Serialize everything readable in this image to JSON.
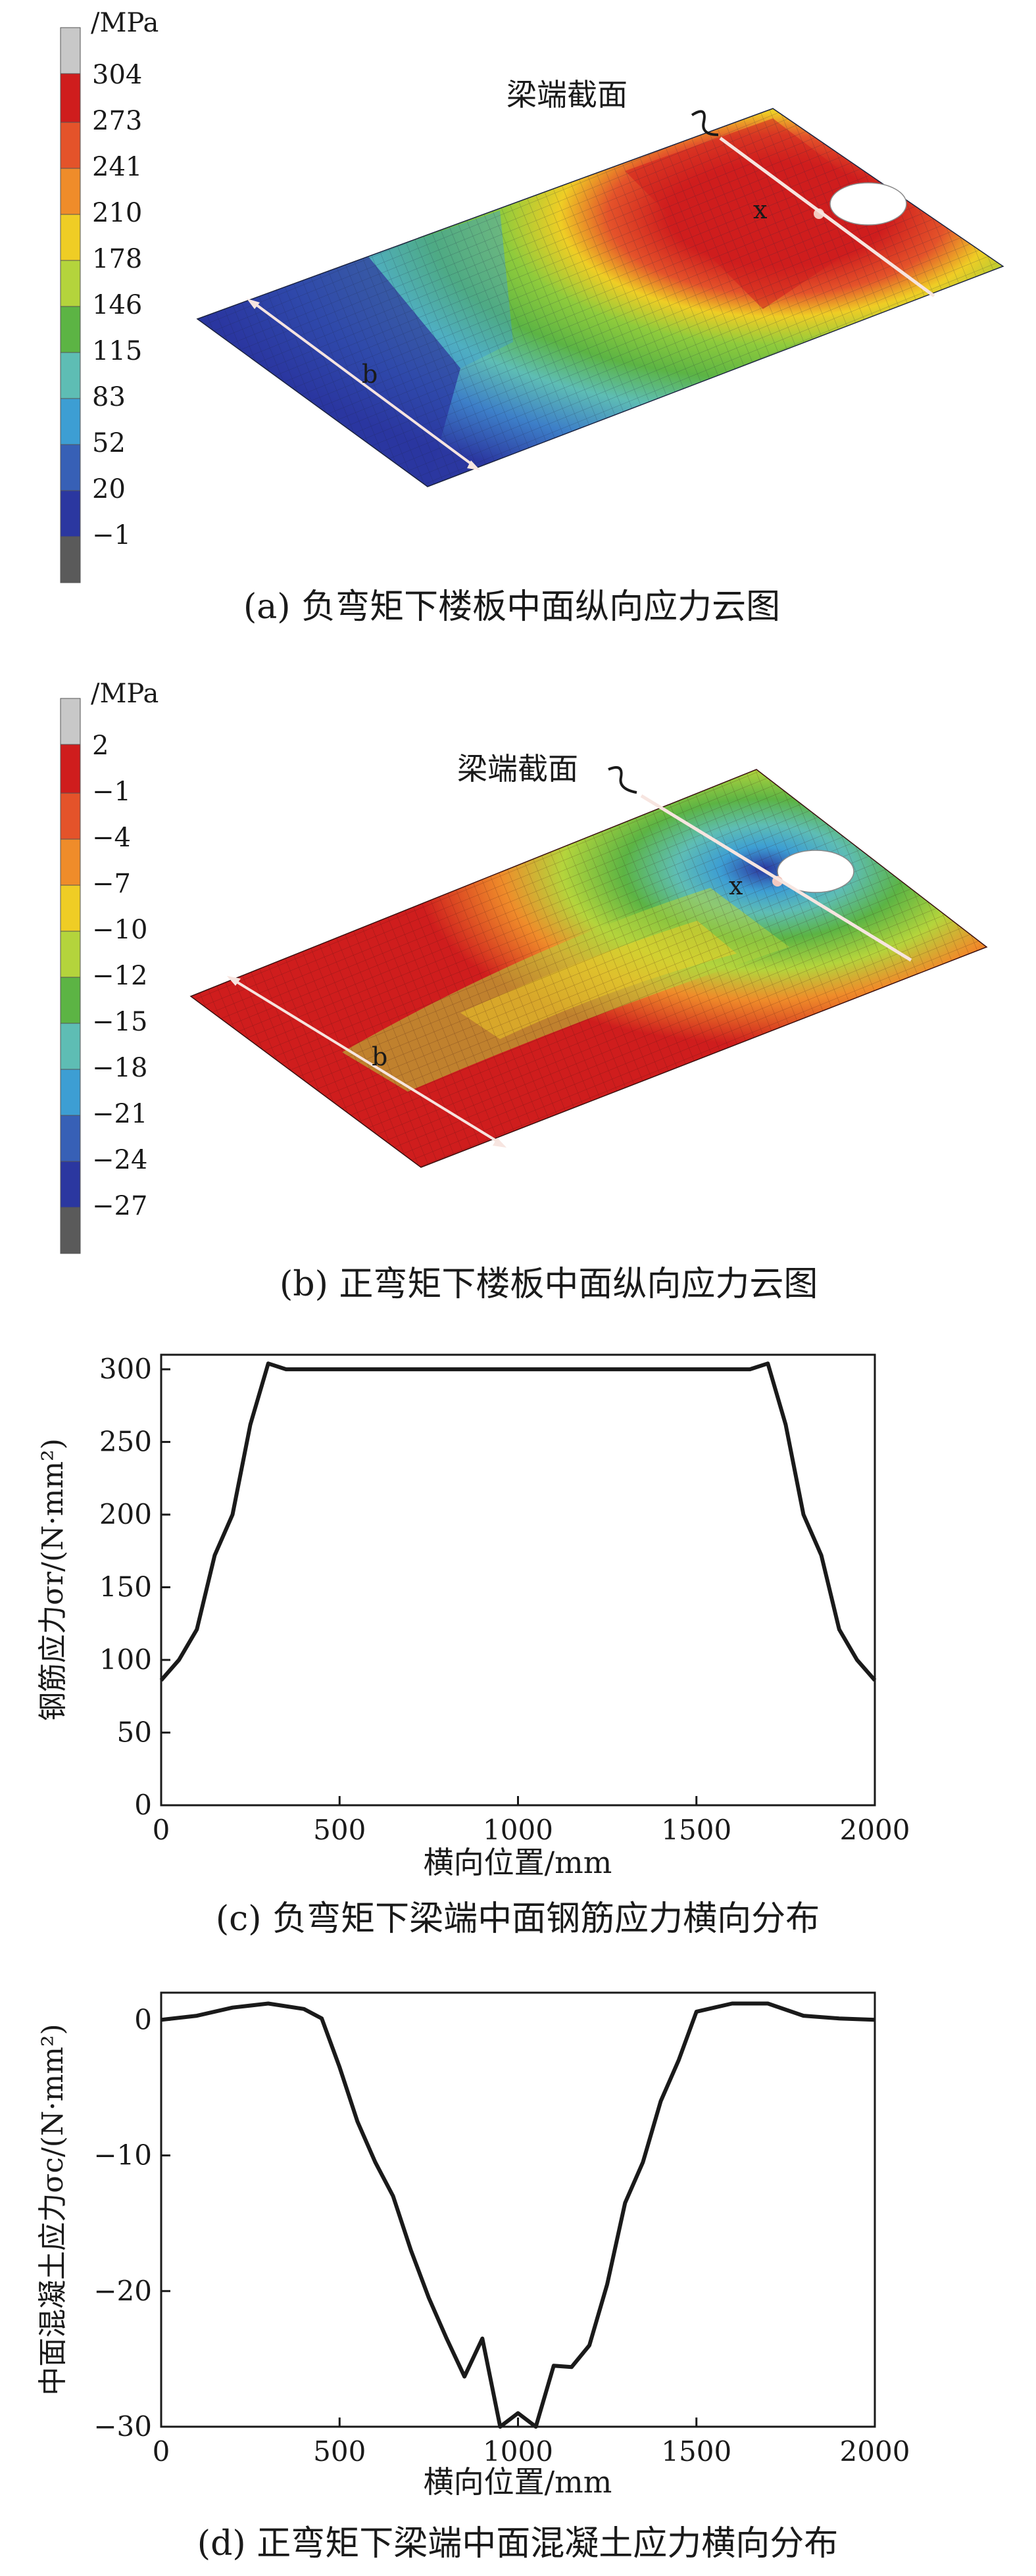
{
  "figure": {
    "panels": [
      {
        "caption": "(a) 负弯矩下楼板中面纵向应力云图",
        "colorbar": {
          "unit": "/MPa",
          "ticks": [
            "304",
            "273",
            "241",
            "210",
            "178",
            "146",
            "115",
            "83",
            "52",
            "20",
            "−1"
          ]
        },
        "annotation": "梁端截面",
        "labels": {
          "x": "x",
          "b": "b"
        }
      },
      {
        "caption": "(b) 正弯矩下楼板中面纵向应力云图",
        "colorbar": {
          "unit": "/MPa",
          "ticks": [
            "2",
            "−1",
            "−4",
            "−7",
            "−10",
            "−12",
            "−15",
            "−18",
            "−21",
            "−24",
            "−27"
          ]
        },
        "annotation": "梁端截面",
        "labels": {
          "x": "x",
          "b": "b"
        }
      }
    ],
    "colorbar_colors": [
      "#c8c8c8",
      "#cf1d1d",
      "#e4532a",
      "#ef8c2a",
      "#efcd25",
      "#b4d43c",
      "#5cb444",
      "#5ebdb4",
      "#3d9ed3",
      "#3760b6",
      "#2b37a0",
      "#5a5a5a"
    ]
  },
  "chart_data": [
    {
      "type": "line",
      "caption": "(c) 负弯矩下梁端中面钢筋应力横向分布",
      "xlabel": "横向位置/mm",
      "ylabel": "钢筋应力σr/(N·mm²)",
      "xlim": [
        0,
        2000
      ],
      "ylim": [
        0,
        310
      ],
      "xticks": [
        0,
        500,
        1000,
        1500,
        2000
      ],
      "yticks": [
        0,
        50,
        100,
        150,
        200,
        250,
        300
      ],
      "grid": false,
      "x": [
        0,
        50,
        100,
        150,
        200,
        250,
        300,
        350,
        1650,
        1700,
        1750,
        1800,
        1850,
        1900,
        1950,
        2000
      ],
      "y": [
        86,
        100,
        121,
        172,
        200,
        262,
        304,
        300,
        300,
        304,
        262,
        200,
        172,
        121,
        100,
        86
      ]
    },
    {
      "type": "line",
      "caption": "(d) 正弯矩下梁端中面混凝土应力横向分布",
      "xlabel": "横向位置/mm",
      "ylabel": "中面混凝土应力σc/(N·mm²)",
      "xlim": [
        0,
        2000
      ],
      "ylim": [
        -30,
        2
      ],
      "xticks": [
        0,
        500,
        1000,
        1500,
        2000
      ],
      "yticks": [
        0,
        -10,
        -20,
        -30
      ],
      "grid": false,
      "x": [
        0,
        100,
        200,
        300,
        400,
        450,
        500,
        550,
        600,
        650,
        700,
        750,
        800,
        850,
        900,
        950,
        1000,
        1050,
        1100,
        1150,
        1200,
        1250,
        1300,
        1350,
        1400,
        1450,
        1500,
        1550,
        1600,
        1700,
        1800,
        1900,
        2000
      ],
      "y": [
        0,
        0.3,
        0.9,
        1.2,
        0.8,
        0.1,
        -3.5,
        -7.5,
        -10.5,
        -13,
        -17,
        -20.5,
        -23.5,
        -26.3,
        -23.5,
        -30,
        -29,
        -30,
        -25.5,
        -25.6,
        -24,
        -19.5,
        -13.5,
        -10.5,
        -6,
        -3,
        0.6,
        0.9,
        1.2,
        1.2,
        0.3,
        0.1,
        0
      ]
    }
  ]
}
